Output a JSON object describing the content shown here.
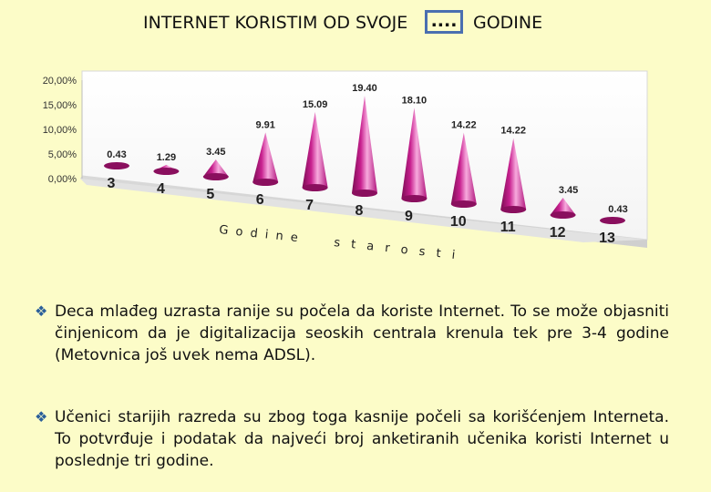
{
  "title": {
    "before": "INTERNET KORISTIM OD SVOJE",
    "box": "....",
    "after": "GODINE"
  },
  "chart_data": {
    "type": "bar",
    "style": "3d-cones",
    "title": "",
    "categories": [
      "3",
      "4",
      "5",
      "6",
      "7",
      "8",
      "9",
      "10",
      "11",
      "12",
      "13"
    ],
    "values": [
      0.43,
      1.29,
      3.45,
      9.91,
      15.09,
      19.4,
      18.1,
      14.22,
      14.22,
      3.45,
      0.43
    ],
    "value_labels": [
      "0.43",
      "1.29",
      "3.45",
      "9.91",
      "15.09",
      "19.40",
      "18.10",
      "14.22",
      "14.22",
      "3.45",
      "0.43"
    ],
    "y_ticks": [
      "0,00%",
      "5,00%",
      "10,00%",
      "15,00%",
      "20,00%"
    ],
    "ylim": [
      0,
      20
    ],
    "xlabel_left": "G o d i n e",
    "xlabel_right": "s t a r o s t i",
    "colors": {
      "cone": "#c8208f",
      "cone_light": "#f7a9dd",
      "cone_dark": "#6d0a4a",
      "last_cone": "#e0169a",
      "floor": "#dcdcdc",
      "wall": "#ffffff"
    }
  },
  "paragraphs": [
    "Deca mlađeg uzrasta ranije su počela da koriste Internet. To se može objasniti činjenicom da je digitalizacija seoskih centrala krenula tek pre 3-4 godine (Metovnica još uvek nema ADSL).",
    "Učenici starijih razreda su zbog toga kasnije počeli sa korišćenjem Interneta. To potvrđuje i podatak da najveći broj anketiranih učenika koristi Internet u poslednje tri godine."
  ],
  "bullet_glyph": "❖"
}
